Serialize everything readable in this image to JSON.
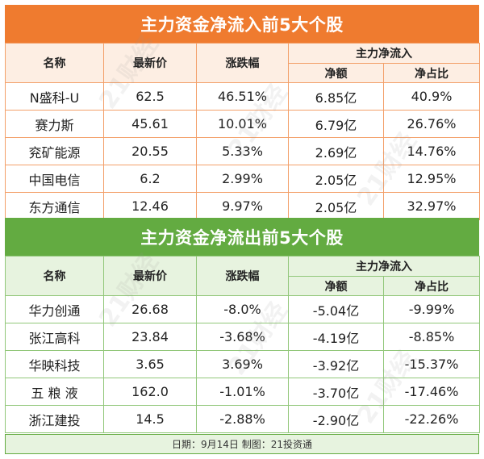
{
  "inflow": {
    "title": "主力资金净流入前5大个股",
    "headers": {
      "name": "名称",
      "price": "最新价",
      "change": "涨跌幅",
      "group": "主力净流入",
      "net": "净额",
      "ratio": "净占比"
    },
    "rows": [
      {
        "name": "N盛科-U",
        "price": "62.5",
        "change": "46.51%",
        "net": "6.85亿",
        "ratio": "40.9%"
      },
      {
        "name": "赛力斯",
        "price": "45.61",
        "change": "10.01%",
        "net": "6.79亿",
        "ratio": "26.76%"
      },
      {
        "name": "兖矿能源",
        "price": "20.55",
        "change": "5.33%",
        "net": "2.69亿",
        "ratio": "14.76%"
      },
      {
        "name": "中国电信",
        "price": "6.2",
        "change": "2.99%",
        "net": "2.05亿",
        "ratio": "12.95%"
      },
      {
        "name": "东方通信",
        "price": "12.46",
        "change": "9.97%",
        "net": "2.05亿",
        "ratio": "32.97%"
      }
    ]
  },
  "outflow": {
    "title": "主力资金净流出前5大个股",
    "headers": {
      "name": "名称",
      "price": "最新价",
      "change": "涨跌幅",
      "group": "主力净流入",
      "net": "净额",
      "ratio": "净占比"
    },
    "rows": [
      {
        "name": "华力创通",
        "price": "26.68",
        "change": "-8.0%",
        "net": "-5.04亿",
        "ratio": "-9.99%"
      },
      {
        "name": "张江高科",
        "price": "23.84",
        "change": "-3.68%",
        "net": "-4.19亿",
        "ratio": "-8.85%"
      },
      {
        "name": "华映科技",
        "price": "3.65",
        "change": "3.69%",
        "net": "-3.92亿",
        "ratio": "-15.37%"
      },
      {
        "name": "五 粮 液",
        "price": "162.0",
        "change": "-1.01%",
        "net": "-3.70亿",
        "ratio": "-17.46%"
      },
      {
        "name": "浙江建投",
        "price": "14.5",
        "change": "-2.88%",
        "net": "-2.90亿",
        "ratio": "-22.26%"
      }
    ]
  },
  "footer": "日期：9月14日 制图：21投资通",
  "watermark": "21财经",
  "colors": {
    "orange": "#ef7b2f",
    "green": "#63ab41",
    "orange_light": "#fdeee3",
    "green_light": "#e7f3df"
  }
}
